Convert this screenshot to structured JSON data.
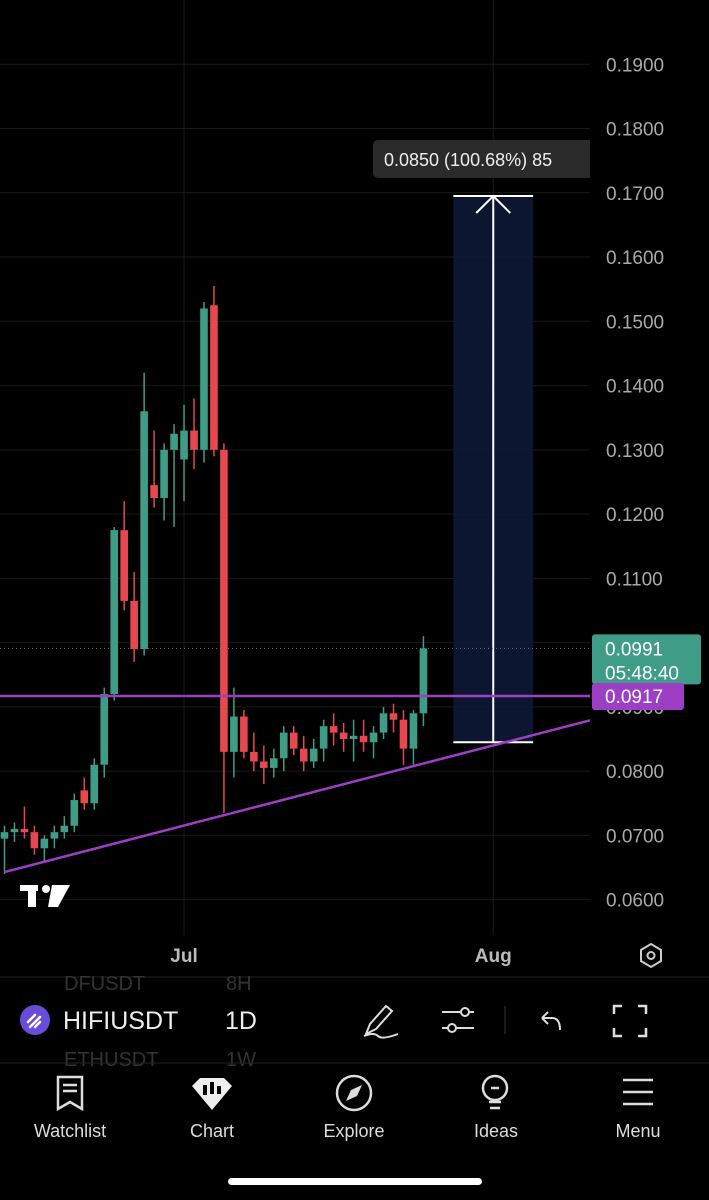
{
  "chart_data": {
    "type": "candlestick",
    "x": [
      -18,
      -17,
      -16,
      -15,
      -14,
      -13,
      -12,
      -11,
      -10,
      -9,
      -8,
      -7,
      -6,
      -5,
      -4,
      -3,
      -2,
      -1,
      0,
      1,
      2,
      3,
      4,
      5,
      6,
      7,
      8,
      9,
      10,
      11,
      12,
      13,
      14,
      15,
      16,
      17,
      18,
      19,
      20,
      21,
      22,
      23,
      24
    ],
    "open": [
      0.0695,
      0.0705,
      0.071,
      0.0705,
      0.068,
      0.0695,
      0.0705,
      0.0715,
      0.077,
      0.075,
      0.081,
      0.092,
      0.1175,
      0.1065,
      0.099,
      0.1245,
      0.1225,
      0.13,
      0.1285,
      0.133,
      0.13,
      0.1525,
      0.13,
      0.083,
      0.0885,
      0.083,
      0.0815,
      0.0805,
      0.082,
      0.086,
      0.0835,
      0.0815,
      0.0835,
      0.087,
      0.086,
      0.085,
      0.0855,
      0.0845,
      0.086,
      0.089,
      0.088,
      0.0835,
      0.089
    ],
    "high": [
      0.0715,
      0.072,
      0.0745,
      0.0715,
      0.07,
      0.0715,
      0.073,
      0.0765,
      0.079,
      0.082,
      0.093,
      0.118,
      0.122,
      0.111,
      0.142,
      0.133,
      0.131,
      0.134,
      0.137,
      0.138,
      0.153,
      0.1555,
      0.131,
      0.093,
      0.0895,
      0.086,
      0.084,
      0.0835,
      0.087,
      0.087,
      0.0855,
      0.085,
      0.088,
      0.089,
      0.0875,
      0.088,
      0.088,
      0.087,
      0.09,
      0.0905,
      0.0895,
      0.0895,
      0.101
    ],
    "low": [
      0.064,
      0.069,
      0.0695,
      0.067,
      0.066,
      0.068,
      0.0695,
      0.0705,
      0.074,
      0.074,
      0.079,
      0.091,
      0.105,
      0.097,
      0.098,
      0.121,
      0.119,
      0.118,
      0.122,
      0.127,
      0.128,
      0.129,
      0.0735,
      0.079,
      0.082,
      0.08,
      0.078,
      0.079,
      0.08,
      0.0825,
      0.08,
      0.0805,
      0.0815,
      0.084,
      0.083,
      0.0815,
      0.083,
      0.082,
      0.085,
      0.086,
      0.081,
      0.081,
      0.087
    ],
    "close": [
      0.0705,
      0.071,
      0.0705,
      0.068,
      0.0695,
      0.0705,
      0.0715,
      0.0755,
      0.075,
      0.081,
      0.092,
      0.1175,
      0.1065,
      0.099,
      0.136,
      0.1225,
      0.13,
      0.1325,
      0.133,
      0.13,
      0.152,
      0.13,
      0.083,
      0.0885,
      0.083,
      0.0815,
      0.0805,
      0.082,
      0.086,
      0.0835,
      0.0815,
      0.0835,
      0.087,
      0.086,
      0.085,
      0.0855,
      0.0845,
      0.086,
      0.089,
      0.088,
      0.0835,
      0.089,
      0.0991
    ],
    "up_color": "#3f9c86",
    "down_color": "#e5484f",
    "xlim": [
      -18.45,
      40.7
    ],
    "xticks": [
      {
        "value": 0,
        "label": "Jul"
      },
      {
        "value": 31,
        "label": "Aug"
      }
    ],
    "ylim": [
      0.0545,
      0.2
    ],
    "yticks": [
      {
        "value": 0.06,
        "label": "0.0600"
      },
      {
        "value": 0.07,
        "label": "0.0700"
      },
      {
        "value": 0.08,
        "label": "0.0800"
      },
      {
        "value": 0.09,
        "label": "0.0900"
      },
      {
        "value": 0.1,
        "label": "0.1000"
      },
      {
        "value": 0.11,
        "label": "0.1100"
      },
      {
        "value": 0.12,
        "label": "0.1200"
      },
      {
        "value": 0.13,
        "label": "0.1300"
      },
      {
        "value": 0.14,
        "label": "0.1400"
      },
      {
        "value": 0.15,
        "label": "0.1500"
      },
      {
        "value": 0.16,
        "label": "0.1600"
      },
      {
        "value": 0.17,
        "label": "0.1700"
      },
      {
        "value": 0.18,
        "label": "0.1800"
      },
      {
        "value": 0.19,
        "label": "0.1900"
      }
    ],
    "grid": true,
    "trendline": {
      "x": [
        -18,
        40.7
      ],
      "y": [
        0.0643,
        0.0879
      ],
      "color": "#9c3fc4"
    },
    "hline": {
      "value": 0.0917,
      "color": "#9c3fc4"
    },
    "last_price": {
      "value": 0.0991,
      "countdown": "05:48:40",
      "color": "#3f9c86"
    },
    "measure": {
      "x": [
        27,
        35
      ],
      "low": 0.0845,
      "high": 0.1695,
      "label": "0.0850 (100.68%) 85"
    }
  },
  "toolbar": {
    "symbol": "HIFIUSDT",
    "interval": "1D",
    "prev_symbol": "DFUSDT",
    "prev_interval": "8H",
    "next_symbol": "ETHUSDT",
    "next_interval": "1W"
  },
  "nav": [
    "Watchlist",
    "Chart",
    "Explore",
    "Ideas",
    "Menu"
  ]
}
